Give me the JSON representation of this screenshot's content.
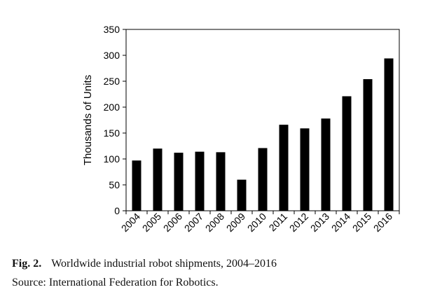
{
  "chart_data": {
    "type": "bar",
    "categories": [
      "2004",
      "2005",
      "2006",
      "2007",
      "2008",
      "2009",
      "2010",
      "2011",
      "2012",
      "2013",
      "2014",
      "2015",
      "2016"
    ],
    "values": [
      97,
      120,
      112,
      114,
      113,
      60,
      121,
      166,
      159,
      178,
      221,
      254,
      294
    ],
    "ylabel": "Thousands of Units",
    "ylim": [
      0,
      350
    ],
    "yticks": [
      0,
      50,
      100,
      150,
      200,
      250,
      300,
      350
    ],
    "bar_color": "#000000",
    "grid": false
  },
  "caption": {
    "figure_label": "Fig. 2.",
    "title": "Worldwide industrial robot shipments, 2004–2016",
    "source": "Source: International Federation for Robotics."
  }
}
